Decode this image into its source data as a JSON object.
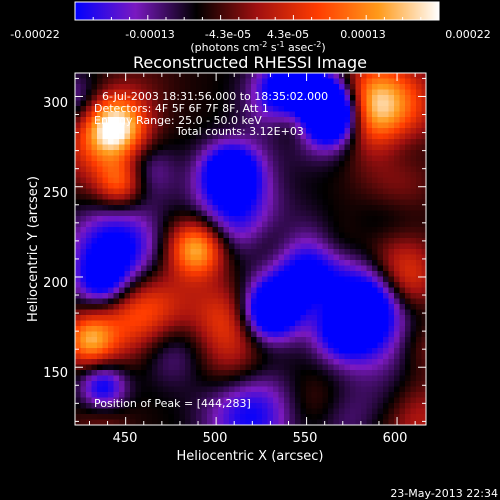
{
  "colors": {
    "background": "#000000",
    "foreground": "#ffffff",
    "colormap": [
      "#0000ff",
      "#7a19c0",
      "#000000",
      "#a01010",
      "#ff3c00",
      "#ff9a1a",
      "#ffffff"
    ]
  },
  "colorbar": {
    "tick_labels": [
      "-0.00022",
      "-0.00013",
      "-4.3e-05",
      "4.3e-05",
      "0.00013",
      "0.00022"
    ],
    "unit_text": "(photons cm",
    "unit_sup1": "-2",
    "unit_text2": " s",
    "unit_sup2": "-1",
    "unit_text3": " asec",
    "unit_sup3": "-2",
    "unit_text4": ")",
    "range": [
      -0.00022,
      0.00022
    ]
  },
  "chart_data": {
    "type": "heatmap",
    "title": "Reconstructed RHESSI Image",
    "xlabel": "Heliocentric X (arcsec)",
    "ylabel": "Heliocentric Y (arcsec)",
    "xlim": [
      422,
      616
    ],
    "ylim": [
      118,
      313
    ],
    "x_ticks": [
      450,
      500,
      550,
      600
    ],
    "y_ticks": [
      150,
      200,
      250,
      300
    ],
    "annotations": [
      "6-Jul-2003 18:31:56.000 to 18:35:02.000",
      "Detectors: 4F 5F 6F 7F 8F, Att 1",
      "Energy Range: 25.0 - 50.0 keV",
      "Total counts: 3.12E+03",
      "Position of Peak = [444,283]"
    ],
    "peak_position": [
      444,
      283
    ]
  },
  "footer": {
    "date": "23-May-2013 22:34"
  }
}
